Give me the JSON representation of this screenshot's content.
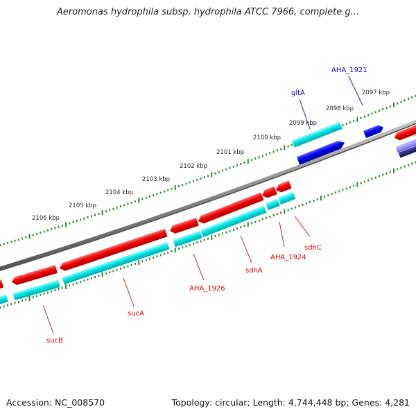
{
  "header": {
    "title": "Aeromonas hydrophila subsp. hydrophila ATCC 7966, complete g..."
  },
  "footer": {
    "accession": "Accession: NC_008570",
    "topology": "Topology: circular; Length: 4,744,448 bp; Genes: 4,281"
  },
  "ruler": {
    "labels": [
      "2097 kbp",
      "2098 kbp",
      "2099 kbp",
      "2100 kbp",
      "2101 kbp",
      "2102 kbp",
      "2103 kbp",
      "2104 kbp",
      "2105 kbp",
      "2106 kbp"
    ]
  },
  "genes": {
    "blue_labels": [
      "AHA_1921",
      "gltA"
    ],
    "red_labels": [
      "sdhC",
      "AHA_1924",
      "sdhA",
      "AHA_1926",
      "sucA",
      "sucB"
    ]
  },
  "colors": {
    "backbone": "#888888",
    "reverse_feature": "#ee0000",
    "forward_feature": "#0000ee",
    "cds": "#00e5e5",
    "ruler": "#2a8a2a",
    "red_label": "#dd0000",
    "blue_label": "#0000cc"
  }
}
